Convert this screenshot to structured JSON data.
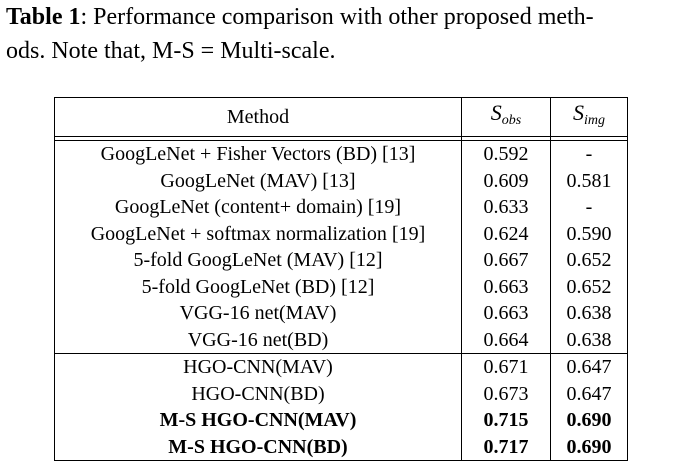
{
  "caption": {
    "label": "Table 1",
    "text_line1": ": Performance comparison with other proposed meth-",
    "text_line2": "ods. Note that, M-S = Multi-scale."
  },
  "table": {
    "headers": {
      "method": "Method",
      "sobs_base": "S",
      "sobs_sub": "obs",
      "simg_base": "S",
      "simg_sub": "img"
    },
    "group1": [
      {
        "method": "GoogLeNet + Fisher Vectors (BD) [13]",
        "sobs": "0.592",
        "simg": "-"
      },
      {
        "method": "GoogLeNet (MAV) [13]",
        "sobs": "0.609",
        "simg": "0.581"
      },
      {
        "method": "GoogLeNet (content+ domain) [19]",
        "sobs": "0.633",
        "simg": "-"
      },
      {
        "method": "GoogLeNet + softmax normalization [19]",
        "sobs": "0.624",
        "simg": "0.590"
      },
      {
        "method": "5-fold GoogLeNet (MAV) [12]",
        "sobs": "0.667",
        "simg": "0.652"
      },
      {
        "method": "5-fold GoogLeNet (BD) [12]",
        "sobs": "0.663",
        "simg": "0.652"
      },
      {
        "method": "VGG-16 net(MAV)",
        "sobs": "0.663",
        "simg": "0.638"
      },
      {
        "method": "VGG-16 net(BD)",
        "sobs": "0.664",
        "simg": "0.638"
      }
    ],
    "group2": [
      {
        "method": "HGO-CNN(MAV)",
        "sobs": "0.671",
        "simg": "0.647"
      },
      {
        "method": "HGO-CNN(BD)",
        "sobs": "0.673",
        "simg": "0.647"
      },
      {
        "method": "M-S HGO-CNN(MAV)",
        "sobs": "0.715",
        "simg": "0.690"
      },
      {
        "method": "M-S HGO-CNN(BD)",
        "sobs": "0.717",
        "simg": "0.690"
      }
    ]
  }
}
